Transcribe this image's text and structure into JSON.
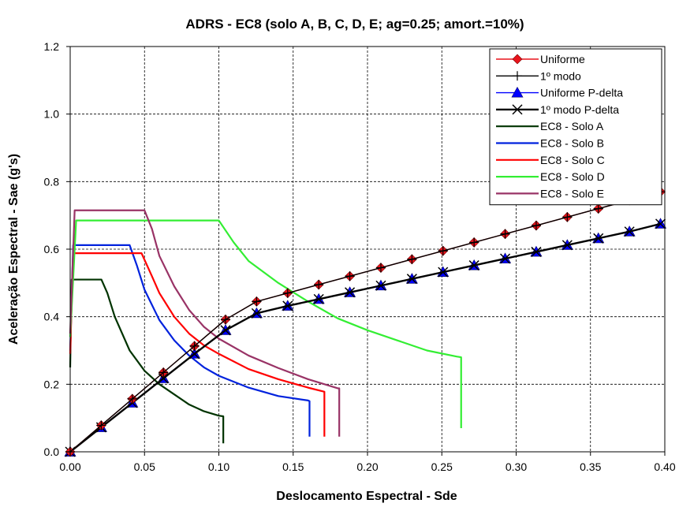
{
  "chart_data": {
    "type": "line",
    "title": "ADRS - EC8 (solo A, B, C, D, E; ag=0.25; amort.=10%)",
    "xlabel": "Deslocamento Espectral - Sde",
    "ylabel": "Aceleração Espectral - Sae (g's)",
    "xlim": [
      0,
      0.4
    ],
    "ylim": [
      0,
      1.2
    ],
    "xticks": [
      "0.00",
      "0.05",
      "0.10",
      "0.15",
      "0.20",
      "0.25",
      "0.30",
      "0.35",
      "0.40"
    ],
    "yticks": [
      "0.0",
      "0.2",
      "0.4",
      "0.6",
      "0.8",
      "1.0",
      "1.2"
    ],
    "grid": true,
    "legend_position": "top-right",
    "series": [
      {
        "name": "Uniforme",
        "color": "#e8141c",
        "marker": "diamond",
        "points": [
          [
            0,
            0
          ],
          [
            0.0209,
            0.0783
          ],
          [
            0.0418,
            0.1566
          ],
          [
            0.0627,
            0.2349
          ],
          [
            0.0836,
            0.3132
          ],
          [
            0.1045,
            0.3915
          ],
          [
            0.1254,
            0.445
          ],
          [
            0.1463,
            0.47
          ],
          [
            0.1672,
            0.495
          ],
          [
            0.1881,
            0.52
          ],
          [
            0.209,
            0.545
          ],
          [
            0.2299,
            0.57
          ],
          [
            0.2508,
            0.595
          ],
          [
            0.2717,
            0.62
          ],
          [
            0.2926,
            0.645
          ],
          [
            0.3135,
            0.67
          ],
          [
            0.3344,
            0.695
          ],
          [
            0.3553,
            0.72
          ],
          [
            0.3762,
            0.745
          ],
          [
            0.3971,
            0.77
          ]
        ]
      },
      {
        "name": "1º modo",
        "color": "#000000",
        "marker": "plus",
        "points": [
          [
            0,
            0
          ],
          [
            0.0209,
            0.0783
          ],
          [
            0.0418,
            0.1566
          ],
          [
            0.0627,
            0.2349
          ],
          [
            0.0836,
            0.3132
          ],
          [
            0.1045,
            0.3915
          ],
          [
            0.1254,
            0.445
          ],
          [
            0.1463,
            0.47
          ],
          [
            0.1672,
            0.495
          ],
          [
            0.1881,
            0.52
          ],
          [
            0.209,
            0.545
          ],
          [
            0.2299,
            0.57
          ],
          [
            0.2508,
            0.595
          ],
          [
            0.2717,
            0.62
          ],
          [
            0.2926,
            0.645
          ],
          [
            0.3135,
            0.67
          ],
          [
            0.3344,
            0.695
          ],
          [
            0.3553,
            0.72
          ],
          [
            0.3762,
            0.745
          ],
          [
            0.3971,
            0.77
          ]
        ]
      },
      {
        "name": "Uniforme P-delta",
        "color": "#0000ff",
        "marker": "triangle",
        "points": [
          [
            0,
            0
          ],
          [
            0.0209,
            0.0725
          ],
          [
            0.0418,
            0.145
          ],
          [
            0.0627,
            0.2175
          ],
          [
            0.0836,
            0.29
          ],
          [
            0.1045,
            0.36
          ],
          [
            0.1254,
            0.41
          ],
          [
            0.1463,
            0.432
          ],
          [
            0.1672,
            0.452
          ],
          [
            0.1881,
            0.472
          ],
          [
            0.209,
            0.492
          ],
          [
            0.2299,
            0.512
          ],
          [
            0.2508,
            0.532
          ],
          [
            0.2717,
            0.552
          ],
          [
            0.2926,
            0.572
          ],
          [
            0.3135,
            0.592
          ],
          [
            0.3344,
            0.612
          ],
          [
            0.3553,
            0.632
          ],
          [
            0.3762,
            0.652
          ],
          [
            0.3971,
            0.675
          ]
        ]
      },
      {
        "name": "1º modo  P-delta",
        "color": "#000000",
        "marker": "x",
        "points": [
          [
            0,
            0
          ],
          [
            0.0209,
            0.0725
          ],
          [
            0.0418,
            0.145
          ],
          [
            0.0627,
            0.2175
          ],
          [
            0.0836,
            0.29
          ],
          [
            0.1045,
            0.36
          ],
          [
            0.1254,
            0.41
          ],
          [
            0.1463,
            0.432
          ],
          [
            0.1672,
            0.452
          ],
          [
            0.1881,
            0.472
          ],
          [
            0.209,
            0.492
          ],
          [
            0.2299,
            0.512
          ],
          [
            0.2508,
            0.532
          ],
          [
            0.2717,
            0.552
          ],
          [
            0.2926,
            0.572
          ],
          [
            0.3135,
            0.592
          ],
          [
            0.3344,
            0.612
          ],
          [
            0.3553,
            0.632
          ],
          [
            0.3762,
            0.652
          ],
          [
            0.3971,
            0.675
          ]
        ]
      },
      {
        "name": "EC8 - Solo A",
        "color": "#003300",
        "marker": "none",
        "points": [
          [
            0,
            0.25
          ],
          [
            0.001,
            0.51
          ],
          [
            0.021,
            0.51
          ],
          [
            0.025,
            0.47
          ],
          [
            0.03,
            0.4
          ],
          [
            0.04,
            0.3
          ],
          [
            0.05,
            0.24
          ],
          [
            0.06,
            0.2
          ],
          [
            0.07,
            0.17
          ],
          [
            0.08,
            0.14
          ],
          [
            0.09,
            0.12
          ],
          [
            0.1,
            0.107
          ],
          [
            0.103,
            0.105
          ],
          [
            0.103,
            0.025
          ]
        ]
      },
      {
        "name": "EC8 - Solo B",
        "color": "#0022dd",
        "marker": "none",
        "points": [
          [
            0,
            0.3
          ],
          [
            0.002,
            0.612
          ],
          [
            0.04,
            0.612
          ],
          [
            0.045,
            0.55
          ],
          [
            0.05,
            0.48
          ],
          [
            0.06,
            0.39
          ],
          [
            0.07,
            0.33
          ],
          [
            0.08,
            0.285
          ],
          [
            0.09,
            0.25
          ],
          [
            0.1,
            0.225
          ],
          [
            0.12,
            0.19
          ],
          [
            0.14,
            0.165
          ],
          [
            0.16,
            0.152
          ],
          [
            0.161,
            0.15
          ],
          [
            0.161,
            0.045
          ]
        ]
      },
      {
        "name": "EC8 - Solo C",
        "color": "#ff0000",
        "marker": "none",
        "points": [
          [
            0,
            0.29
          ],
          [
            0.002,
            0.588
          ],
          [
            0.048,
            0.588
          ],
          [
            0.055,
            0.52
          ],
          [
            0.06,
            0.47
          ],
          [
            0.07,
            0.4
          ],
          [
            0.08,
            0.35
          ],
          [
            0.09,
            0.315
          ],
          [
            0.1,
            0.29
          ],
          [
            0.12,
            0.245
          ],
          [
            0.14,
            0.215
          ],
          [
            0.16,
            0.19
          ],
          [
            0.171,
            0.178
          ],
          [
            0.171,
            0.045
          ]
        ]
      },
      {
        "name": "EC8 - Solo D",
        "color": "#33ee33",
        "marker": "none",
        "points": [
          [
            0,
            0.34
          ],
          [
            0.004,
            0.685
          ],
          [
            0.1,
            0.685
          ],
          [
            0.11,
            0.62
          ],
          [
            0.12,
            0.565
          ],
          [
            0.14,
            0.5
          ],
          [
            0.16,
            0.445
          ],
          [
            0.18,
            0.395
          ],
          [
            0.2,
            0.36
          ],
          [
            0.22,
            0.33
          ],
          [
            0.24,
            0.3
          ],
          [
            0.26,
            0.282
          ],
          [
            0.263,
            0.28
          ],
          [
            0.263,
            0.07
          ]
        ]
      },
      {
        "name": "EC8 - Solo E",
        "color": "#993366",
        "marker": "none",
        "points": [
          [
            0,
            0.35
          ],
          [
            0.003,
            0.715
          ],
          [
            0.05,
            0.715
          ],
          [
            0.055,
            0.66
          ],
          [
            0.06,
            0.58
          ],
          [
            0.07,
            0.49
          ],
          [
            0.08,
            0.42
          ],
          [
            0.09,
            0.37
          ],
          [
            0.1,
            0.335
          ],
          [
            0.12,
            0.285
          ],
          [
            0.14,
            0.248
          ],
          [
            0.16,
            0.215
          ],
          [
            0.18,
            0.188
          ],
          [
            0.181,
            0.188
          ],
          [
            0.181,
            0.045
          ]
        ]
      }
    ]
  }
}
